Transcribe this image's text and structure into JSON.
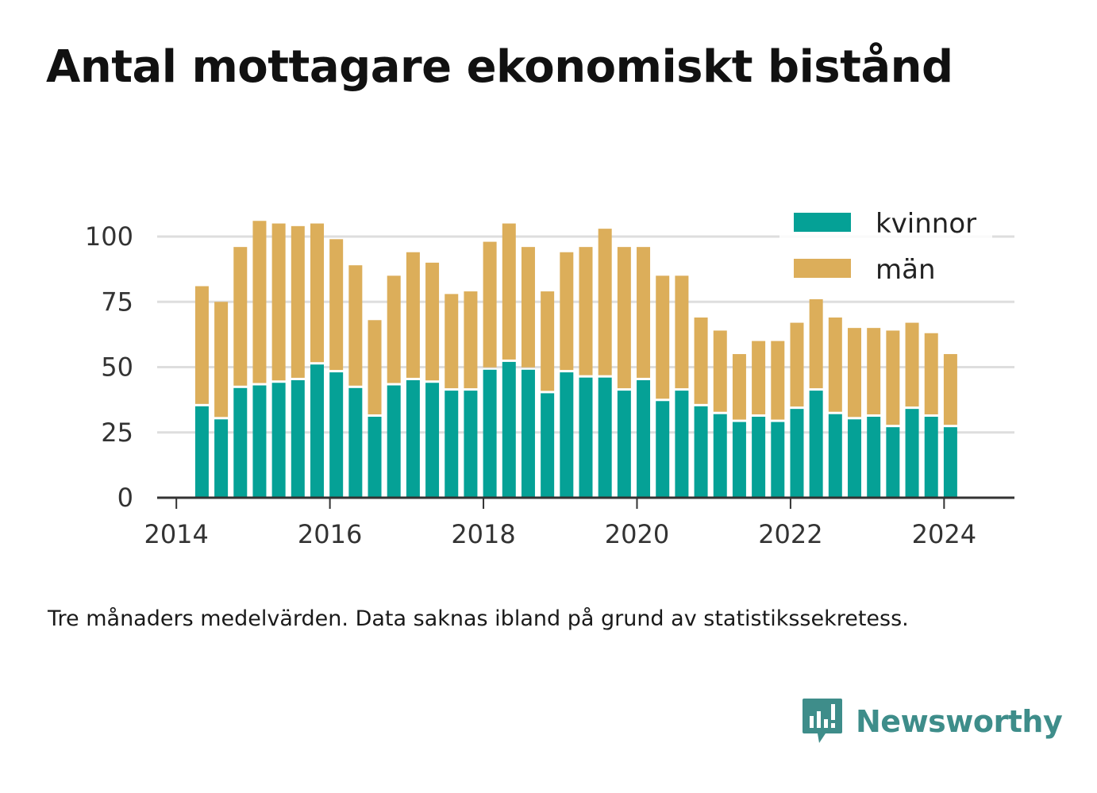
{
  "chart_data": {
    "type": "bar",
    "stacked": true,
    "title": "Antal mottagare ekonomiskt bistånd",
    "note": "Tre månaders medelvärden. Data saknas ibland på grund av statistikssekretess.",
    "xlabel": "",
    "ylabel": "",
    "x": [
      "2014-05",
      "2014-08",
      "2014-11",
      "2015-02",
      "2015-05",
      "2015-08",
      "2015-11",
      "2016-02",
      "2016-05",
      "2016-08",
      "2016-11",
      "2017-02",
      "2017-05",
      "2017-08",
      "2017-11",
      "2018-02",
      "2018-05",
      "2018-08",
      "2018-11",
      "2019-02",
      "2019-05",
      "2019-08",
      "2019-11",
      "2020-02",
      "2020-05",
      "2020-08",
      "2020-11",
      "2021-02",
      "2021-05",
      "2021-08",
      "2021-11",
      "2022-02",
      "2022-05",
      "2022-08",
      "2022-11",
      "2023-02",
      "2023-05",
      "2023-08",
      "2023-11",
      "2024-02"
    ],
    "x_range": [
      "2013-10",
      "2024-12"
    ],
    "xticks": [
      "2014",
      "2016",
      "2018",
      "2020",
      "2022",
      "2024"
    ],
    "ylim": [
      0,
      100
    ],
    "yticks": [
      0,
      25,
      50,
      75,
      100
    ],
    "grid": true,
    "legend_position": "top-right",
    "series": [
      {
        "name": "kvinnor",
        "color": "#05a196",
        "values": [
          35,
          30,
          42,
          43,
          44,
          45,
          51,
          48,
          42,
          31,
          43,
          45,
          44,
          41,
          41,
          49,
          52,
          49,
          40,
          48,
          46,
          46,
          41,
          45,
          37,
          41,
          35,
          32,
          29,
          31,
          29,
          34,
          41,
          32,
          30,
          31,
          27,
          34,
          31,
          27
        ]
      },
      {
        "name": "män",
        "color": "#dcae5a",
        "values": [
          46,
          45,
          54,
          63,
          61,
          59,
          54,
          51,
          47,
          37,
          42,
          49,
          46,
          37,
          38,
          49,
          53,
          47,
          39,
          46,
          50,
          57,
          55,
          51,
          48,
          44,
          34,
          32,
          26,
          29,
          31,
          33,
          35,
          37,
          35,
          34,
          37,
          33,
          32,
          28
        ]
      }
    ]
  },
  "brand": {
    "name": "Newsworthy",
    "icon": "newsworthy-logo-icon",
    "color": "#3e8d8a"
  }
}
